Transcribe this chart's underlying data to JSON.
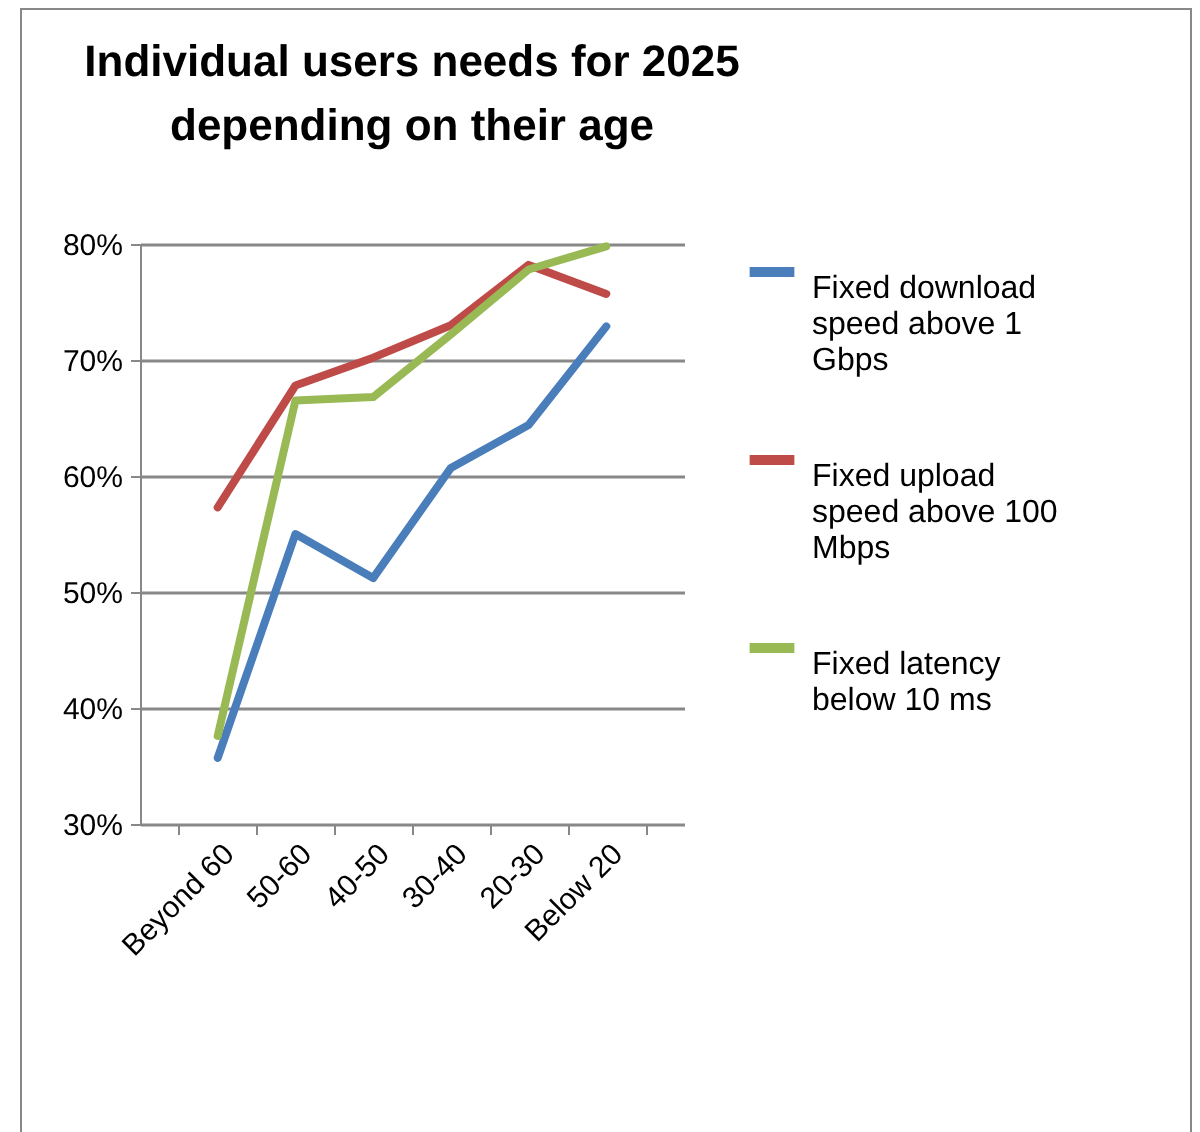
{
  "chart_data": {
    "type": "line",
    "title": "Individual users needs for 2025 depending on their age",
    "categories": [
      "Beyond 60",
      "50-60",
      "40-50",
      "30-40",
      "20-30",
      "Below 20"
    ],
    "series": [
      {
        "name": "Fixed download speed above 1 Gbps",
        "color": "#4a7ebb",
        "values": [
          35.7,
          55.0,
          51.2,
          60.7,
          64.4,
          72.9
        ]
      },
      {
        "name": "Fixed upload speed above 100 Mbps",
        "color": "#be4b48",
        "values": [
          57.3,
          67.8,
          70.2,
          73.0,
          78.2,
          75.7
        ]
      },
      {
        "name": "Fixed latency below 10 ms",
        "color": "#98b954",
        "values": [
          37.6,
          66.5,
          66.8,
          72.2,
          77.8,
          79.8
        ]
      }
    ],
    "ylim": [
      30,
      80
    ],
    "yticks": [
      {
        "value": 30,
        "label": "30%"
      },
      {
        "value": 40,
        "label": "40%"
      },
      {
        "value": 50,
        "label": "50%"
      },
      {
        "value": 60,
        "label": "60%"
      },
      {
        "value": 70,
        "label": "70%"
      },
      {
        "value": 80,
        "label": "80%"
      }
    ],
    "grid": "y",
    "legend": "right",
    "marker": "none",
    "line_style": "solid"
  }
}
